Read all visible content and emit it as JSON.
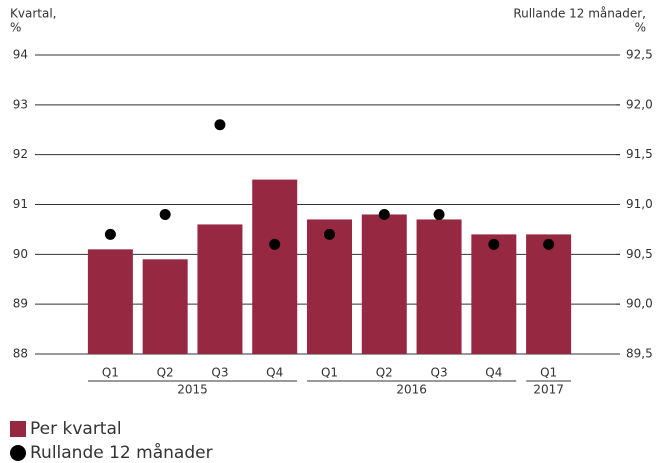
{
  "chart_data": {
    "type": "bar",
    "y_label": [
      "Kvartal,",
      "%"
    ],
    "y2_label": [
      "Rullande 12 månader,",
      "%"
    ],
    "categories": [
      "Q1",
      "Q2",
      "Q3",
      "Q4",
      "Q1",
      "Q2",
      "Q3",
      "Q4",
      "Q1"
    ],
    "groups": [
      {
        "label": "2015",
        "count": 4
      },
      {
        "label": "2016",
        "count": 4
      },
      {
        "label": "2017",
        "count": 1
      }
    ],
    "series": [
      {
        "name": "Per kvartal",
        "type": "bar",
        "color": "#962842",
        "values": [
          90.1,
          89.9,
          90.6,
          91.5,
          90.7,
          90.8,
          90.7,
          90.4,
          90.4
        ]
      },
      {
        "name": "Rullande 12 månader",
        "type": "scatter",
        "axis": "y2",
        "color": "#000000",
        "values": [
          90.7,
          90.9,
          91.8,
          90.6,
          90.7,
          90.9,
          90.9,
          90.6,
          90.6
        ]
      }
    ],
    "ylim": [
      88,
      94
    ],
    "yticks": [
      88,
      89,
      90,
      91,
      92,
      93,
      94
    ],
    "y2lim": [
      89.5,
      92.5
    ],
    "y2ticks": [
      {
        "value": 89.5,
        "label": "89,5"
      },
      {
        "value": 90.0,
        "label": "90,0"
      },
      {
        "value": 90.5,
        "label": "90,5"
      },
      {
        "value": 91.0,
        "label": "91,0"
      },
      {
        "value": 91.5,
        "label": "91,5"
      },
      {
        "value": 92.0,
        "label": "92,0"
      },
      {
        "value": 92.5,
        "label": "92,5"
      }
    ],
    "grid": true,
    "legend": "bottom-left"
  }
}
